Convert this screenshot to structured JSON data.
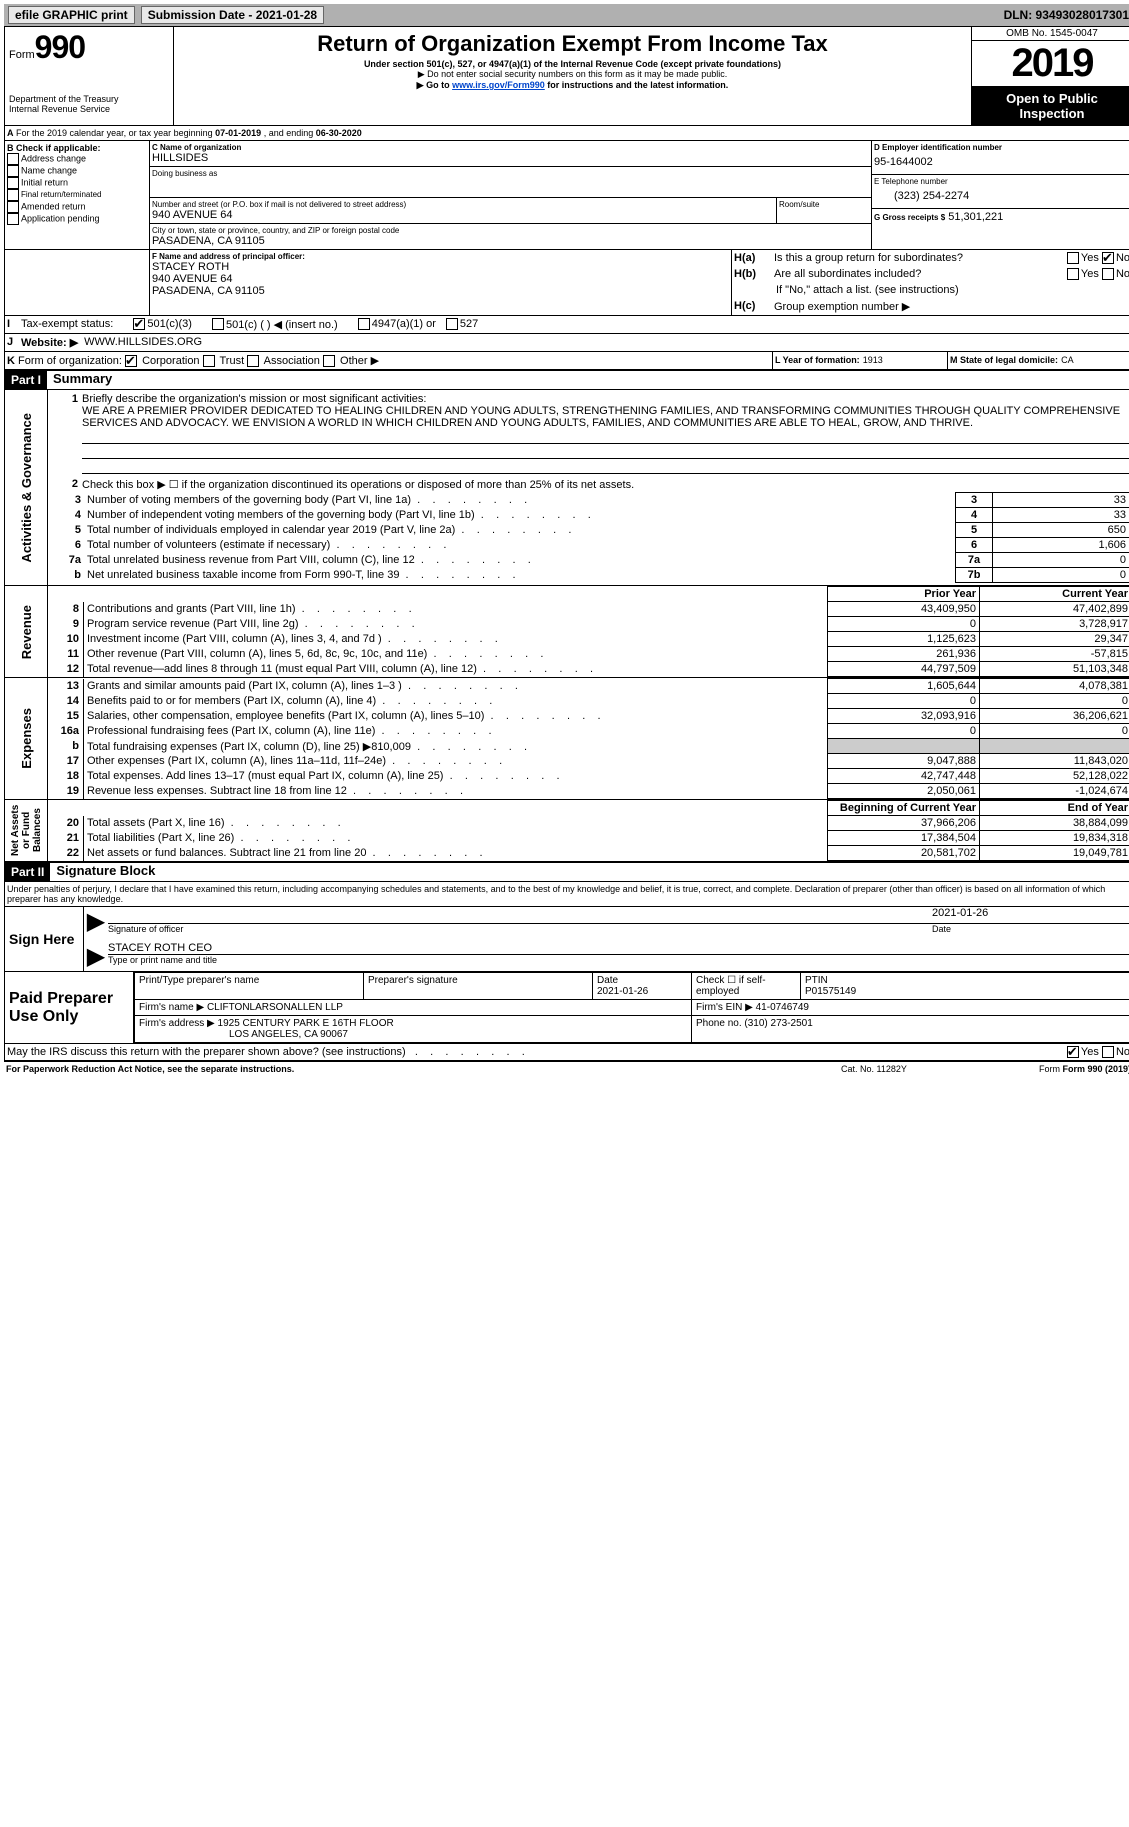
{
  "topbar": {
    "efile": "efile GRAPHIC print",
    "submission_label": "Submission Date - 2021-01-28",
    "dln": "DLN: 93493028017301"
  },
  "header": {
    "form_word": "Form",
    "form_num": "990",
    "dept1": "Department of the Treasury",
    "dept2": "Internal Revenue Service",
    "title": "Return of Organization Exempt From Income Tax",
    "subtitle": "Under section 501(c), 527, or 4947(a)(1) of the Internal Revenue Code (except private foundations)",
    "note1": "▶ Do not enter social security numbers on this form as it may be made public.",
    "note2_pre": "▶ Go to ",
    "note2_link": "www.irs.gov/Form990",
    "note2_post": " for instructions and the latest information.",
    "omb": "OMB No. 1545-0047",
    "year": "2019",
    "open": "Open to Public Inspection"
  },
  "period": {
    "text_pre": "For the 2019 calendar year, or tax year beginning ",
    "begin": "07-01-2019",
    "mid": " , and ending ",
    "end": "06-30-2020",
    "a_label": "A"
  },
  "boxB": {
    "label": "B Check if applicable:",
    "items": [
      "Address change",
      "Name change",
      "Initial return",
      "Final return/terminated",
      "Amended return",
      "Application pending"
    ]
  },
  "boxC": {
    "label": "C Name of organization",
    "name": "HILLSIDES",
    "dba_label": "Doing business as",
    "street_label": "Number and street (or P.O. box if mail is not delivered to street address)",
    "room_label": "Room/suite",
    "street": "940 AVENUE 64",
    "city_label": "City or town, state or province, country, and ZIP or foreign postal code",
    "city": "PASADENA, CA  91105"
  },
  "boxD": {
    "label": "D Employer identification number",
    "value": "95-1644002"
  },
  "boxE": {
    "label": "E Telephone number",
    "value": "(323) 254-2274"
  },
  "boxG": {
    "label": "G Gross receipts $",
    "value": "51,301,221"
  },
  "boxF": {
    "label": "F Name and address of principal officer:",
    "name": "STACEY ROTH",
    "street": "940 AVENUE 64",
    "city": "PASADENA, CA  91105"
  },
  "boxH": {
    "a_q": "Is this a group return for subordinates?",
    "b_q": "Are all subordinates included?",
    "b_note": "If \"No,\" attach a list. (see instructions)",
    "c_q": "Group exemption number ▶",
    "yes": "Yes",
    "no": "No",
    "ha": "H(a)",
    "hb": "H(b)",
    "hc": "H(c)"
  },
  "boxI": {
    "label": "Tax-exempt status:",
    "opt1": "501(c)(3)",
    "opt2": "501(c) (  ) ◀ (insert no.)",
    "opt3": "4947(a)(1) or",
    "opt4": "527",
    "i": "I"
  },
  "boxJ": {
    "label": "Website: ▶",
    "value": "WWW.HILLSIDES.ORG",
    "j": "J"
  },
  "boxK": {
    "label": "Form of organization:",
    "corp": "Corporation",
    "trust": "Trust",
    "assoc": "Association",
    "other": "Other ▶",
    "k": "K"
  },
  "boxL": {
    "label": "L Year of formation:",
    "value": "1913"
  },
  "boxM": {
    "label": "M State of legal domicile:",
    "value": "CA"
  },
  "part1": {
    "hdr": "Part I",
    "title": "Summary",
    "side_gov": "Activities & Governance",
    "side_rev": "Revenue",
    "side_exp": "Expenses",
    "side_net": "Net Assets or Fund Balances",
    "l1": "Briefly describe the organization's mission or most significant activities:",
    "mission": "WE ARE A PREMIER PROVIDER DEDICATED TO HEALING CHILDREN AND YOUNG ADULTS, STRENGTHENING FAMILIES, AND TRANSFORMING COMMUNITIES THROUGH QUALITY COMPREHENSIVE SERVICES AND ADVOCACY. WE ENVISION A WORLD IN WHICH CHILDREN AND YOUNG ADULTS, FAMILIES, AND COMMUNITIES ARE ABLE TO HEAL, GROW, AND THRIVE.",
    "l2": "Check this box ▶ ☐  if the organization discontinued its operations or disposed of more than 25% of its net assets.",
    "gov_lines": [
      {
        "n": "3",
        "t": "Number of voting members of the governing body (Part VI, line 1a)",
        "box": "3",
        "v": "33"
      },
      {
        "n": "4",
        "t": "Number of independent voting members of the governing body (Part VI, line 1b)",
        "box": "4",
        "v": "33"
      },
      {
        "n": "5",
        "t": "Total number of individuals employed in calendar year 2019 (Part V, line 2a)",
        "box": "5",
        "v": "650"
      },
      {
        "n": "6",
        "t": "Total number of volunteers (estimate if necessary)",
        "box": "6",
        "v": "1,606"
      },
      {
        "n": "7a",
        "t": "Total unrelated business revenue from Part VIII, column (C), line 12",
        "box": "7a",
        "v": "0"
      },
      {
        "n": "b",
        "t": "Net unrelated business taxable income from Form 990-T, line 39",
        "box": "7b",
        "v": "0"
      }
    ],
    "col_prior": "Prior Year",
    "col_current": "Current Year",
    "rev_lines": [
      {
        "n": "8",
        "t": "Contributions and grants (Part VIII, line 1h)",
        "p": "43,409,950",
        "c": "47,402,899"
      },
      {
        "n": "9",
        "t": "Program service revenue (Part VIII, line 2g)",
        "p": "0",
        "c": "3,728,917"
      },
      {
        "n": "10",
        "t": "Investment income (Part VIII, column (A), lines 3, 4, and 7d )",
        "p": "1,125,623",
        "c": "29,347"
      },
      {
        "n": "11",
        "t": "Other revenue (Part VIII, column (A), lines 5, 6d, 8c, 9c, 10c, and 11e)",
        "p": "261,936",
        "c": "-57,815"
      },
      {
        "n": "12",
        "t": "Total revenue—add lines 8 through 11 (must equal Part VIII, column (A), line 12)",
        "p": "44,797,509",
        "c": "51,103,348"
      }
    ],
    "exp_lines": [
      {
        "n": "13",
        "t": "Grants and similar amounts paid (Part IX, column (A), lines 1–3 )",
        "p": "1,605,644",
        "c": "4,078,381"
      },
      {
        "n": "14",
        "t": "Benefits paid to or for members (Part IX, column (A), line 4)",
        "p": "0",
        "c": "0"
      },
      {
        "n": "15",
        "t": "Salaries, other compensation, employee benefits (Part IX, column (A), lines 5–10)",
        "p": "32,093,916",
        "c": "36,206,621"
      },
      {
        "n": "16a",
        "t": "Professional fundraising fees (Part IX, column (A), line 11e)",
        "p": "0",
        "c": "0"
      },
      {
        "n": "b",
        "t": "Total fundraising expenses (Part IX, column (D), line 25) ▶810,009",
        "p": "",
        "c": "",
        "shaded": true
      },
      {
        "n": "17",
        "t": "Other expenses (Part IX, column (A), lines 11a–11d, 11f–24e)",
        "p": "9,047,888",
        "c": "11,843,020"
      },
      {
        "n": "18",
        "t": "Total expenses. Add lines 13–17 (must equal Part IX, column (A), line 25)",
        "p": "42,747,448",
        "c": "52,128,022"
      },
      {
        "n": "19",
        "t": "Revenue less expenses. Subtract line 18 from line 12",
        "p": "2,050,061",
        "c": "-1,024,674"
      }
    ],
    "col_begin": "Beginning of Current Year",
    "col_end": "End of Year",
    "net_lines": [
      {
        "n": "20",
        "t": "Total assets (Part X, line 16)",
        "p": "37,966,206",
        "c": "38,884,099"
      },
      {
        "n": "21",
        "t": "Total liabilities (Part X, line 26)",
        "p": "17,384,504",
        "c": "19,834,318"
      },
      {
        "n": "22",
        "t": "Net assets or fund balances. Subtract line 21 from line 20",
        "p": "20,581,702",
        "c": "19,049,781"
      }
    ]
  },
  "part2": {
    "hdr": "Part II",
    "title": "Signature Block",
    "decl": "Under penalties of perjury, I declare that I have examined this return, including accompanying schedules and statements, and to the best of my knowledge and belief, it is true, correct, and complete. Declaration of preparer (other than officer) is based on all information of which preparer has any knowledge.",
    "sign_here": "Sign Here",
    "sig_officer": "Signature of officer",
    "sig_date": "Date",
    "sig_date_val": "2021-01-26",
    "sig_name": "STACEY ROTH  CEO",
    "sig_name_label": "Type or print name and title",
    "paid": "Paid Preparer Use Only",
    "prep_name_label": "Print/Type preparer's name",
    "prep_sig_label": "Preparer's signature",
    "prep_date_label": "Date",
    "prep_date": "2021-01-26",
    "prep_check": "Check ☐ if self-employed",
    "ptin_label": "PTIN",
    "ptin": "P01575149",
    "firm_name_label": "Firm's name    ▶",
    "firm_name": "CLIFTONLARSONALLEN LLP",
    "firm_ein_label": "Firm's EIN ▶",
    "firm_ein": "41-0746749",
    "firm_addr_label": "Firm's address ▶",
    "firm_addr1": "1925 CENTURY PARK E 16TH FLOOR",
    "firm_addr2": "LOS ANGELES, CA  90067",
    "phone_label": "Phone no.",
    "phone": "(310) 273-2501",
    "discuss": "May the IRS discuss this return with the preparer shown above? (see instructions)",
    "yes": "Yes",
    "no": "No"
  },
  "footer": {
    "paperwork": "For Paperwork Reduction Act Notice, see the separate instructions.",
    "cat": "Cat. No. 11282Y",
    "form": "Form 990 (2019)"
  }
}
